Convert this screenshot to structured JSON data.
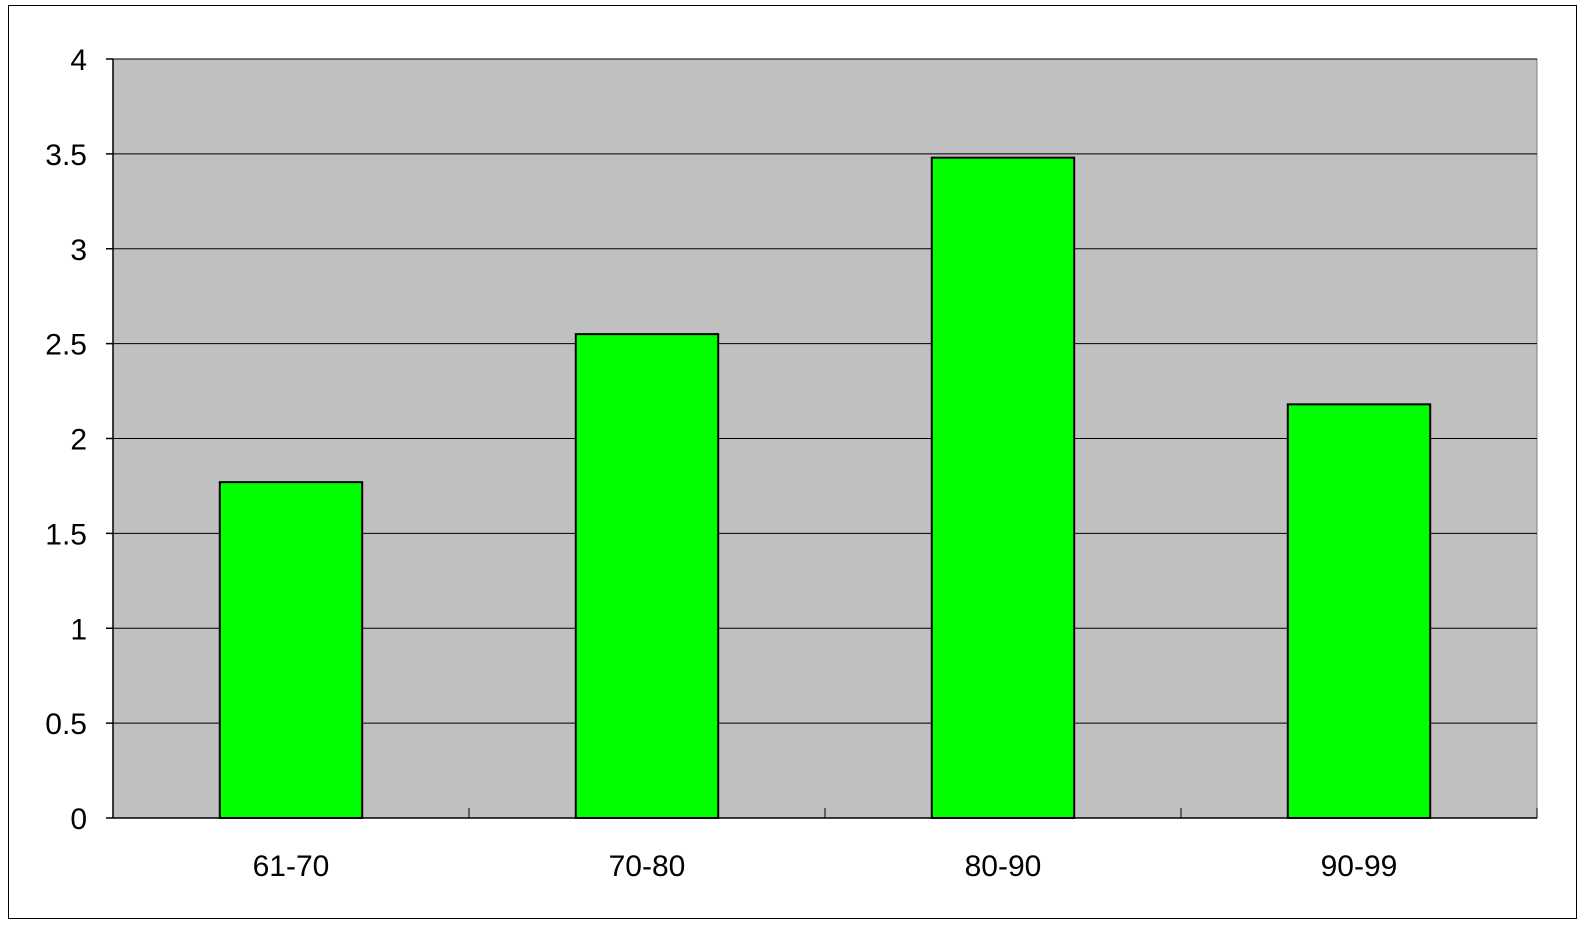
{
  "chart_data": {
    "type": "bar",
    "title": "",
    "xlabel": "",
    "ylabel": "",
    "categories": [
      "61-70",
      "70-80",
      "80-90",
      "90-99"
    ],
    "values": [
      1.77,
      2.55,
      3.48,
      2.18
    ],
    "ylim": [
      0,
      4
    ],
    "yticks": [
      "0",
      "0.5",
      "1",
      "1.5",
      "2",
      "2.5",
      "3",
      "3.5",
      "4"
    ],
    "grid": true,
    "legend": "none",
    "colors": {
      "bar_fill": "#00ff00",
      "bar_stroke": "#000000",
      "plot_background": "#c0c0c0",
      "gridline": "#000000"
    }
  }
}
